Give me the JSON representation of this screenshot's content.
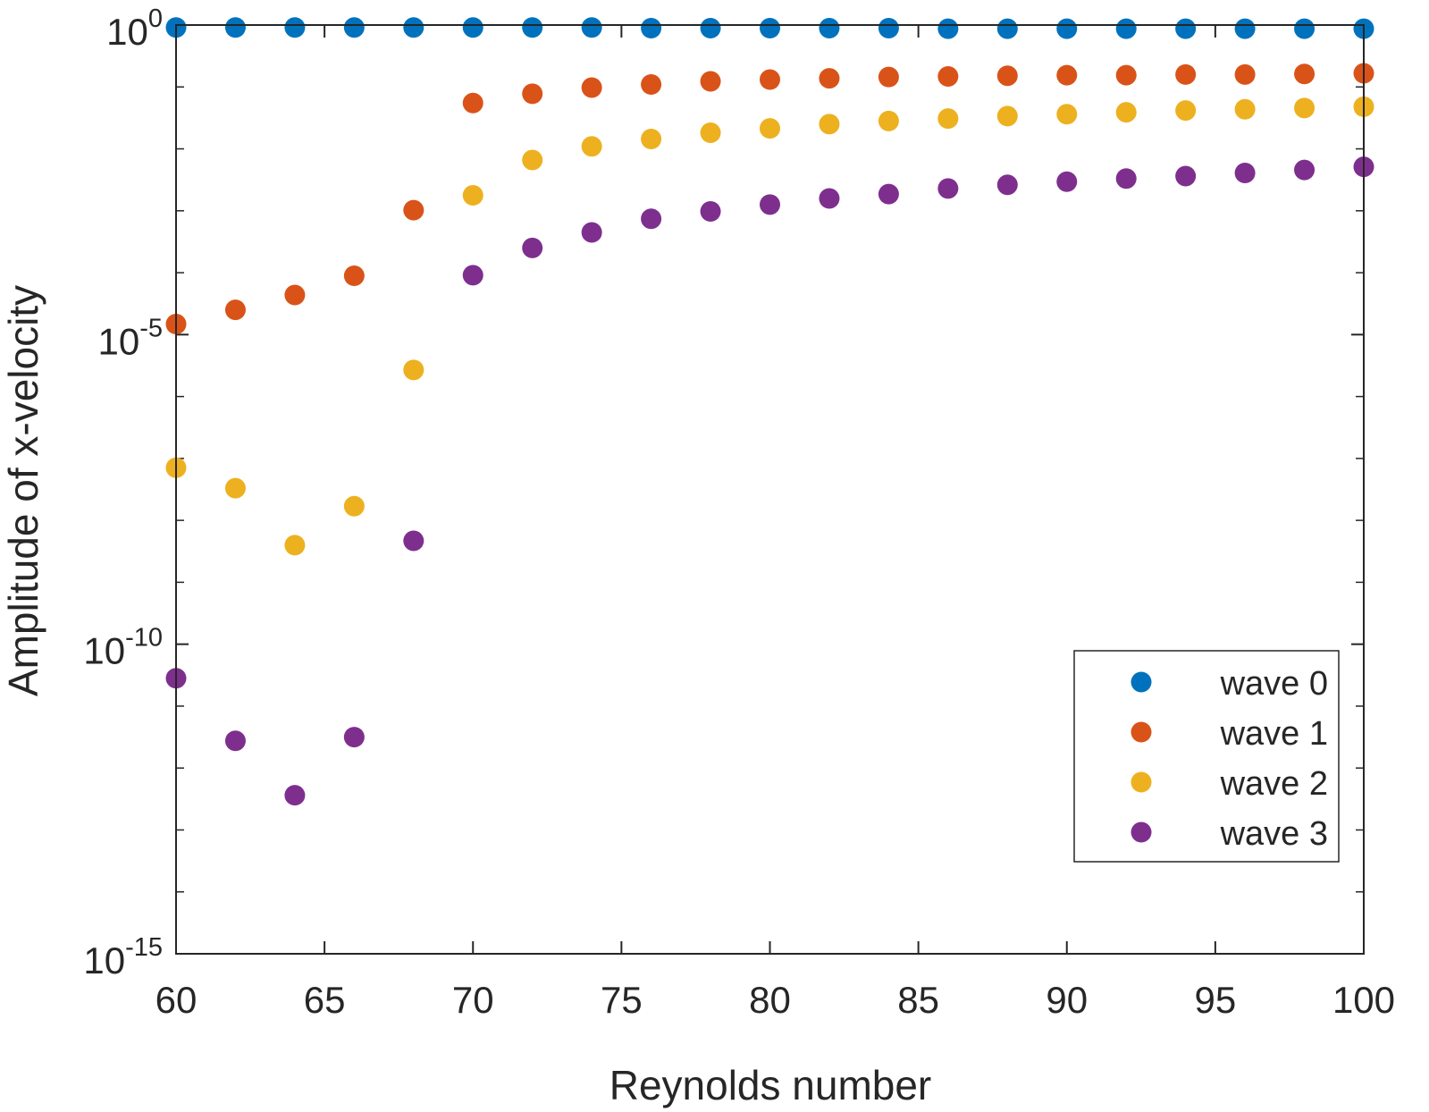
{
  "chart_data": {
    "type": "scatter",
    "title": "",
    "xlabel": "Reynolds number",
    "ylabel": "Amplitude of x-velocity",
    "x_scale": "linear",
    "y_scale": "log",
    "xlim": [
      60,
      100
    ],
    "ylim_log10": [
      -15,
      0
    ],
    "x_ticks": [
      60,
      65,
      70,
      75,
      80,
      85,
      90,
      95,
      100
    ],
    "x_tick_labels": [
      "60",
      "65",
      "70",
      "75",
      "80",
      "85",
      "90",
      "95",
      "100"
    ],
    "y_major_ticks_log10": [
      0,
      -5,
      -10,
      -15
    ],
    "y_tick_labels": [
      {
        "base": "10",
        "exp": "0"
      },
      {
        "base": "10",
        "exp": "-5"
      },
      {
        "base": "10",
        "exp": "-10"
      },
      {
        "base": "10",
        "exp": "-15"
      }
    ],
    "grid": false,
    "legend_position": "bottom-right",
    "series": [
      {
        "name": "wave 0",
        "color": "#0072BD",
        "x": [
          60,
          62,
          64,
          66,
          68,
          70,
          72,
          74,
          76,
          78,
          80,
          82,
          84,
          86,
          88,
          90,
          92,
          94,
          96,
          98,
          100
        ],
        "log10_y": [
          -0.04,
          -0.04,
          -0.04,
          -0.04,
          -0.04,
          -0.04,
          -0.04,
          -0.04,
          -0.05,
          -0.05,
          -0.05,
          -0.05,
          -0.05,
          -0.06,
          -0.06,
          -0.06,
          -0.06,
          -0.06,
          -0.06,
          -0.06,
          -0.06
        ]
      },
      {
        "name": "wave 1",
        "color": "#D95319",
        "x": [
          60,
          62,
          64,
          66,
          68,
          70,
          72,
          74,
          76,
          78,
          80,
          82,
          84,
          86,
          88,
          90,
          92,
          94,
          96,
          98,
          100
        ],
        "log10_y": [
          -4.83,
          -4.6,
          -4.36,
          -4.05,
          -2.99,
          -1.26,
          -1.11,
          -1.01,
          -0.96,
          -0.91,
          -0.88,
          -0.86,
          -0.84,
          -0.83,
          -0.82,
          -0.81,
          -0.81,
          -0.8,
          -0.8,
          -0.79,
          -0.78
        ]
      },
      {
        "name": "wave 2",
        "color": "#EDB120",
        "x": [
          60,
          62,
          64,
          66,
          68,
          70,
          72,
          74,
          76,
          78,
          80,
          82,
          84,
          86,
          88,
          90,
          92,
          94,
          96,
          98,
          100
        ],
        "log10_y": [
          -7.15,
          -7.48,
          -8.4,
          -7.77,
          -5.57,
          -2.75,
          -2.18,
          -1.96,
          -1.84,
          -1.74,
          -1.67,
          -1.6,
          -1.55,
          -1.51,
          -1.47,
          -1.44,
          -1.41,
          -1.38,
          -1.36,
          -1.34,
          -1.32
        ]
      },
      {
        "name": "wave 3",
        "color": "#7E2F8E",
        "x": [
          60,
          62,
          64,
          66,
          68,
          70,
          72,
          74,
          76,
          78,
          80,
          82,
          84,
          86,
          88,
          90,
          92,
          94,
          96,
          98,
          100
        ],
        "log10_y": [
          -10.55,
          -11.56,
          -12.44,
          -11.5,
          -8.33,
          -4.04,
          -3.6,
          -3.35,
          -3.13,
          -3.01,
          -2.9,
          -2.8,
          -2.73,
          -2.64,
          -2.58,
          -2.53,
          -2.48,
          -2.44,
          -2.39,
          -2.34,
          -2.29
        ]
      }
    ]
  }
}
